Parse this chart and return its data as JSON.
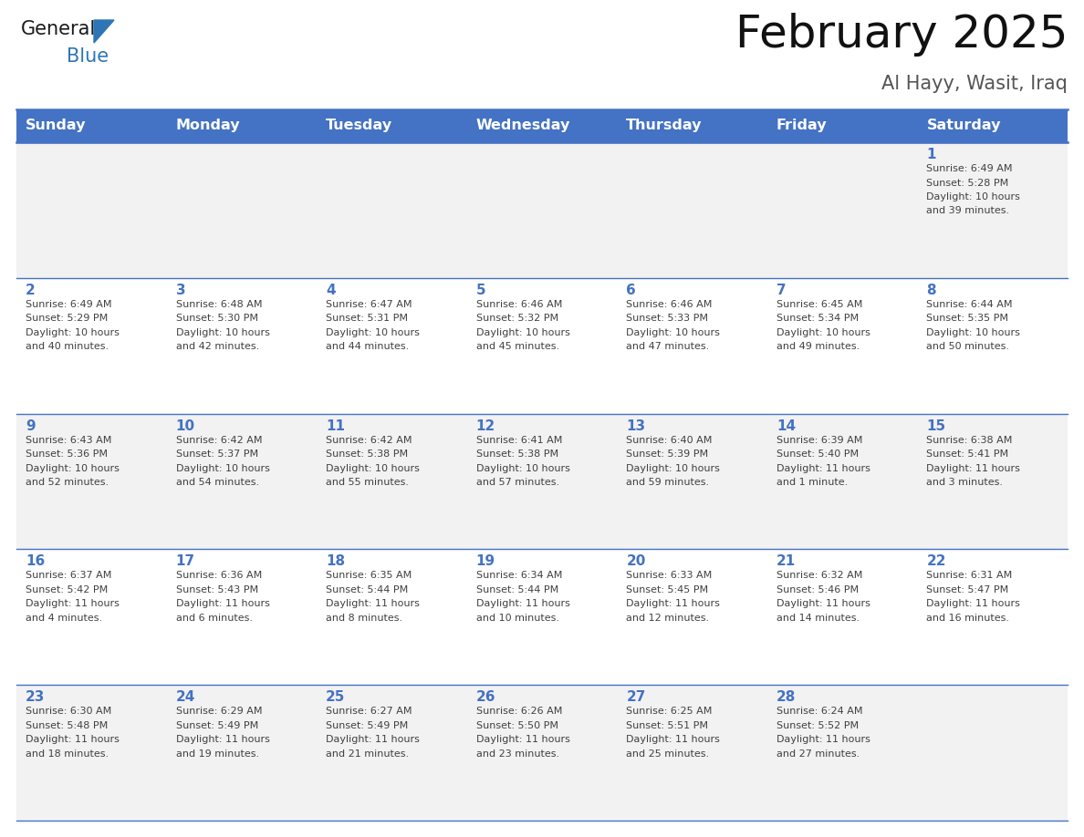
{
  "title": "February 2025",
  "subtitle": "Al Hayy, Wasit, Iraq",
  "days_of_week": [
    "Sunday",
    "Monday",
    "Tuesday",
    "Wednesday",
    "Thursday",
    "Friday",
    "Saturday"
  ],
  "header_bg": "#4472C4",
  "header_text": "#FFFFFF",
  "cell_bg_odd": "#F2F2F2",
  "cell_bg_even": "#FFFFFF",
  "day_number_color": "#4472C4",
  "text_color": "#404040",
  "border_color": "#4472C4",
  "logo_general_color": "#1a1a1a",
  "logo_blue_color": "#2E75B6",
  "title_fontsize": 36,
  "subtitle_fontsize": 15,
  "header_fontsize": 11.5,
  "day_num_fontsize": 11,
  "cell_text_fontsize": 8,
  "calendar_data": [
    [
      {
        "day": null,
        "sunrise": null,
        "sunset": null,
        "daylight": null
      },
      {
        "day": null,
        "sunrise": null,
        "sunset": null,
        "daylight": null
      },
      {
        "day": null,
        "sunrise": null,
        "sunset": null,
        "daylight": null
      },
      {
        "day": null,
        "sunrise": null,
        "sunset": null,
        "daylight": null
      },
      {
        "day": null,
        "sunrise": null,
        "sunset": null,
        "daylight": null
      },
      {
        "day": null,
        "sunrise": null,
        "sunset": null,
        "daylight": null
      },
      {
        "day": 1,
        "sunrise": "6:49 AM",
        "sunset": "5:28 PM",
        "daylight_line1": "10 hours",
        "daylight_line2": "and 39 minutes."
      }
    ],
    [
      {
        "day": 2,
        "sunrise": "6:49 AM",
        "sunset": "5:29 PM",
        "daylight_line1": "10 hours",
        "daylight_line2": "and 40 minutes."
      },
      {
        "day": 3,
        "sunrise": "6:48 AM",
        "sunset": "5:30 PM",
        "daylight_line1": "10 hours",
        "daylight_line2": "and 42 minutes."
      },
      {
        "day": 4,
        "sunrise": "6:47 AM",
        "sunset": "5:31 PM",
        "daylight_line1": "10 hours",
        "daylight_line2": "and 44 minutes."
      },
      {
        "day": 5,
        "sunrise": "6:46 AM",
        "sunset": "5:32 PM",
        "daylight_line1": "10 hours",
        "daylight_line2": "and 45 minutes."
      },
      {
        "day": 6,
        "sunrise": "6:46 AM",
        "sunset": "5:33 PM",
        "daylight_line1": "10 hours",
        "daylight_line2": "and 47 minutes."
      },
      {
        "day": 7,
        "sunrise": "6:45 AM",
        "sunset": "5:34 PM",
        "daylight_line1": "10 hours",
        "daylight_line2": "and 49 minutes."
      },
      {
        "day": 8,
        "sunrise": "6:44 AM",
        "sunset": "5:35 PM",
        "daylight_line1": "10 hours",
        "daylight_line2": "and 50 minutes."
      }
    ],
    [
      {
        "day": 9,
        "sunrise": "6:43 AM",
        "sunset": "5:36 PM",
        "daylight_line1": "10 hours",
        "daylight_line2": "and 52 minutes."
      },
      {
        "day": 10,
        "sunrise": "6:42 AM",
        "sunset": "5:37 PM",
        "daylight_line1": "10 hours",
        "daylight_line2": "and 54 minutes."
      },
      {
        "day": 11,
        "sunrise": "6:42 AM",
        "sunset": "5:38 PM",
        "daylight_line1": "10 hours",
        "daylight_line2": "and 55 minutes."
      },
      {
        "day": 12,
        "sunrise": "6:41 AM",
        "sunset": "5:38 PM",
        "daylight_line1": "10 hours",
        "daylight_line2": "and 57 minutes."
      },
      {
        "day": 13,
        "sunrise": "6:40 AM",
        "sunset": "5:39 PM",
        "daylight_line1": "10 hours",
        "daylight_line2": "and 59 minutes."
      },
      {
        "day": 14,
        "sunrise": "6:39 AM",
        "sunset": "5:40 PM",
        "daylight_line1": "11 hours",
        "daylight_line2": "and 1 minute."
      },
      {
        "day": 15,
        "sunrise": "6:38 AM",
        "sunset": "5:41 PM",
        "daylight_line1": "11 hours",
        "daylight_line2": "and 3 minutes."
      }
    ],
    [
      {
        "day": 16,
        "sunrise": "6:37 AM",
        "sunset": "5:42 PM",
        "daylight_line1": "11 hours",
        "daylight_line2": "and 4 minutes."
      },
      {
        "day": 17,
        "sunrise": "6:36 AM",
        "sunset": "5:43 PM",
        "daylight_line1": "11 hours",
        "daylight_line2": "and 6 minutes."
      },
      {
        "day": 18,
        "sunrise": "6:35 AM",
        "sunset": "5:44 PM",
        "daylight_line1": "11 hours",
        "daylight_line2": "and 8 minutes."
      },
      {
        "day": 19,
        "sunrise": "6:34 AM",
        "sunset": "5:44 PM",
        "daylight_line1": "11 hours",
        "daylight_line2": "and 10 minutes."
      },
      {
        "day": 20,
        "sunrise": "6:33 AM",
        "sunset": "5:45 PM",
        "daylight_line1": "11 hours",
        "daylight_line2": "and 12 minutes."
      },
      {
        "day": 21,
        "sunrise": "6:32 AM",
        "sunset": "5:46 PM",
        "daylight_line1": "11 hours",
        "daylight_line2": "and 14 minutes."
      },
      {
        "day": 22,
        "sunrise": "6:31 AM",
        "sunset": "5:47 PM",
        "daylight_line1": "11 hours",
        "daylight_line2": "and 16 minutes."
      }
    ],
    [
      {
        "day": 23,
        "sunrise": "6:30 AM",
        "sunset": "5:48 PM",
        "daylight_line1": "11 hours",
        "daylight_line2": "and 18 minutes."
      },
      {
        "day": 24,
        "sunrise": "6:29 AM",
        "sunset": "5:49 PM",
        "daylight_line1": "11 hours",
        "daylight_line2": "and 19 minutes."
      },
      {
        "day": 25,
        "sunrise": "6:27 AM",
        "sunset": "5:49 PM",
        "daylight_line1": "11 hours",
        "daylight_line2": "and 21 minutes."
      },
      {
        "day": 26,
        "sunrise": "6:26 AM",
        "sunset": "5:50 PM",
        "daylight_line1": "11 hours",
        "daylight_line2": "and 23 minutes."
      },
      {
        "day": 27,
        "sunrise": "6:25 AM",
        "sunset": "5:51 PM",
        "daylight_line1": "11 hours",
        "daylight_line2": "and 25 minutes."
      },
      {
        "day": 28,
        "sunrise": "6:24 AM",
        "sunset": "5:52 PM",
        "daylight_line1": "11 hours",
        "daylight_line2": "and 27 minutes."
      },
      {
        "day": null,
        "sunrise": null,
        "sunset": null,
        "daylight_line1": null,
        "daylight_line2": null
      }
    ]
  ]
}
